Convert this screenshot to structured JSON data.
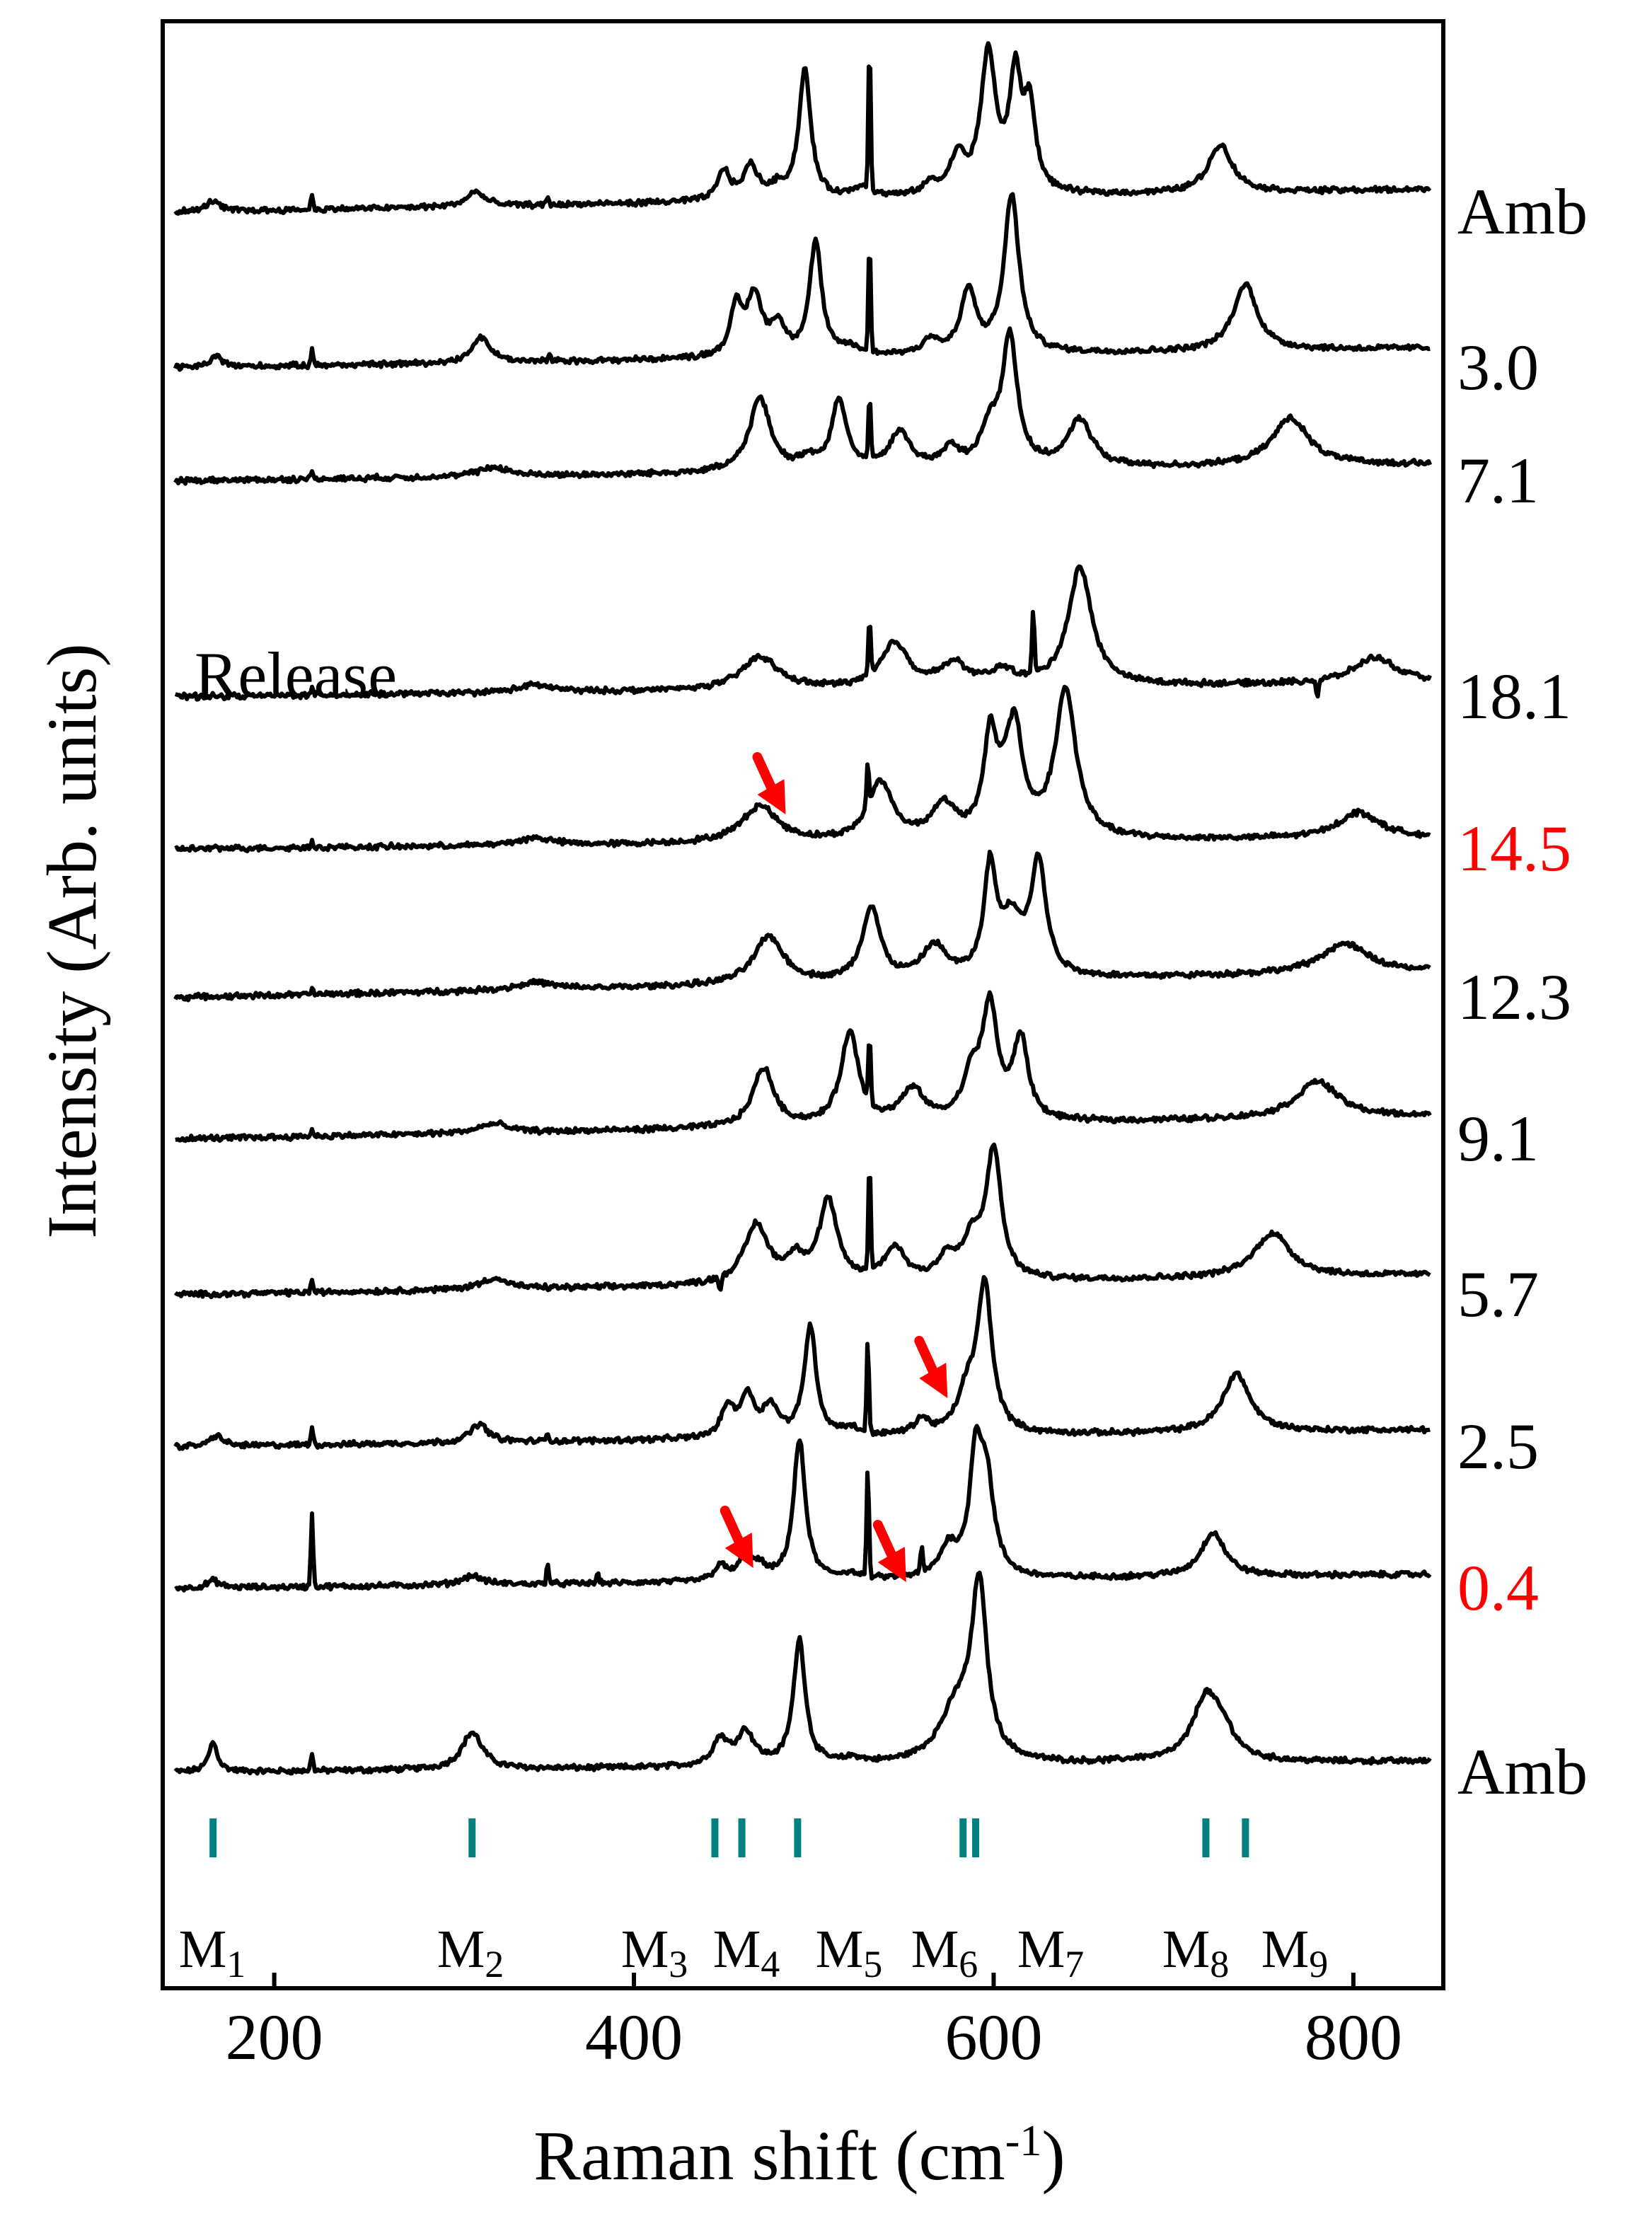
{
  "chart_data": {
    "type": "line",
    "title": "",
    "xlabel": "Raman shift (cm",
    "xlabel_sup": "-1",
    "xlabel_tail": ")",
    "ylabel": "Intensity (Arb. units)",
    "xlim": [
      138,
      850
    ],
    "xticks": [
      200,
      400,
      600,
      800
    ],
    "tick_labels": [
      "200",
      "400",
      "600",
      "800"
    ],
    "section_label": "Release",
    "colors": {
      "line": "#000000",
      "highlight": "#ff0000",
      "marker": "#008080",
      "arrow": "#ff0000"
    },
    "series": [
      {
        "name": "Amb",
        "order": 0,
        "color": "#000000",
        "spikes": [
          [
            221,
            0.5
          ]
        ],
        "peaks": [
          [
            166,
            0.8,
            3
          ],
          [
            310,
            1.0,
            7
          ],
          [
            448,
            0.7,
            5
          ],
          [
            462,
            0.9,
            6
          ],
          [
            492,
            3.4,
            4
          ],
          [
            522,
            0.15,
            6
          ],
          [
            580,
            1.5,
            12
          ],
          [
            592,
            4.5,
            5
          ],
          [
            680,
            0.05,
            10
          ],
          [
            718,
            1.7,
            9
          ],
          [
            728,
            0.6,
            8
          ]
        ]
      },
      {
        "name": "0.4",
        "order": 1,
        "color": "#ff0000",
        "spikes": [
          [
            221,
            2.0
          ],
          [
            352,
            0.6
          ],
          [
            380,
            0.3
          ],
          [
            530,
            3.0
          ],
          [
            560,
            0.7
          ]
        ],
        "peaks": [
          [
            166,
            0.2,
            4
          ],
          [
            310,
            0.25,
            7
          ],
          [
            448,
            0.4,
            4
          ],
          [
            462,
            0.6,
            5
          ],
          [
            470,
            0.3,
            4
          ],
          [
            492,
            3.8,
            4
          ],
          [
            520,
            0.15,
            6
          ],
          [
            575,
            0.8,
            6
          ],
          [
            590,
            3.0,
            4
          ],
          [
            596,
            2.5,
            5
          ],
          [
            722,
            1.2,
            8
          ]
        ]
      },
      {
        "name": "2.5",
        "order": 2,
        "color": "#000000",
        "spikes": [
          [
            221,
            0.5
          ],
          [
            352,
            0.25
          ],
          [
            530,
            2.5
          ]
        ],
        "peaks": [
          [
            168,
            0.3,
            4
          ],
          [
            314,
            0.5,
            6
          ],
          [
            452,
            0.8,
            4
          ],
          [
            463,
            1.1,
            5
          ],
          [
            476,
            0.8,
            5
          ],
          [
            498,
            3.0,
            4
          ],
          [
            520,
            0.2,
            6
          ],
          [
            560,
            0.4,
            5
          ],
          [
            585,
            1.0,
            6
          ],
          [
            595,
            4.0,
            5
          ],
          [
            735,
            1.6,
            9
          ]
        ]
      },
      {
        "name": "5.7",
        "order": 3,
        "color": "#000000",
        "spikes": [
          [
            221,
            0.35
          ],
          [
            448,
            -0.4
          ],
          [
            531,
            3.0
          ]
        ],
        "peaks": [
          [
            322,
            0.3,
            9
          ],
          [
            468,
            1.6,
            8
          ],
          [
            490,
            0.6,
            6
          ],
          [
            508,
            2.2,
            6
          ],
          [
            545,
            0.9,
            7
          ],
          [
            574,
            0.6,
            6
          ],
          [
            588,
            1.0,
            6
          ],
          [
            600,
            3.5,
            5
          ],
          [
            755,
            1.2,
            12
          ]
        ]
      },
      {
        "name": "9.1",
        "order": 4,
        "color": "#000000",
        "spikes": [
          [
            221,
            0.2
          ],
          [
            531,
            1.8
          ]
        ],
        "peaks": [
          [
            322,
            0.25,
            10
          ],
          [
            472,
            1.6,
            7
          ],
          [
            520,
            2.5,
            6
          ],
          [
            555,
            0.9,
            8
          ],
          [
            588,
            1.2,
            6
          ],
          [
            598,
            3.0,
            5
          ],
          [
            615,
            2.2,
            5
          ],
          [
            780,
            1.0,
            14
          ]
        ]
      },
      {
        "name": "12.3",
        "order": 5,
        "color": "#000000",
        "spikes": [
          [
            221,
            0.15
          ]
        ],
        "peaks": [
          [
            345,
            0.2,
            12
          ],
          [
            475,
            1.3,
            10
          ],
          [
            532,
            2.0,
            6
          ],
          [
            567,
            0.9,
            8
          ],
          [
            598,
            2.8,
            4
          ],
          [
            610,
            1.5,
            8
          ],
          [
            625,
            3.0,
            5
          ],
          [
            795,
            0.8,
            16
          ]
        ]
      },
      {
        "name": "14.5",
        "order": 6,
        "color": "#ff0000",
        "spikes": [
          [
            221,
            0.2
          ],
          [
            530,
            1.2
          ]
        ],
        "peaks": [
          [
            345,
            0.2,
            12
          ],
          [
            470,
            1.0,
            12
          ],
          [
            537,
            1.6,
            8
          ],
          [
            572,
            0.9,
            8
          ],
          [
            598,
            2.4,
            4
          ],
          [
            607,
            1.2,
            8
          ],
          [
            612,
            2.2,
            5
          ],
          [
            640,
            4.0,
            7
          ],
          [
            803,
            0.7,
            14
          ]
        ]
      },
      {
        "name": "18.1",
        "order": 7,
        "color": "#000000",
        "spikes": [
          [
            221,
            0.2
          ],
          [
            531,
            1.5
          ],
          [
            622,
            1.8
          ],
          [
            780,
            -0.5
          ]
        ],
        "peaks": [
          [
            345,
            0.2,
            12
          ],
          [
            470,
            0.9,
            12
          ],
          [
            545,
            1.2,
            9
          ],
          [
            578,
            0.6,
            9
          ],
          [
            605,
            0.4,
            8
          ],
          [
            648,
            3.2,
            8
          ],
          [
            812,
            0.7,
            14
          ]
        ]
      },
      {
        "name": "7.1",
        "order": 8,
        "color": "#000000",
        "spikes": [
          [
            221,
            0.2
          ],
          [
            531,
            1.8
          ]
        ],
        "peaks": [
          [
            322,
            0.25,
            10
          ],
          [
            470,
            2.0,
            7
          ],
          [
            497,
            0.3,
            5
          ],
          [
            514,
            1.9,
            5
          ],
          [
            548,
            1.0,
            7
          ],
          [
            576,
            0.5,
            6
          ],
          [
            598,
            1.0,
            6
          ],
          [
            609,
            3.5,
            5
          ],
          [
            648,
            1.3,
            8
          ],
          [
            765,
            1.3,
            12
          ]
        ]
      },
      {
        "name": "3.0",
        "order": 9,
        "color": "#000000",
        "spikes": [
          [
            221,
            0.5
          ],
          [
            353,
            0.2
          ],
          [
            531,
            3.0
          ]
        ],
        "peaks": [
          [
            168,
            0.3,
            4
          ],
          [
            315,
            0.7,
            6
          ],
          [
            457,
            1.3,
            4
          ],
          [
            467,
            1.6,
            5
          ],
          [
            480,
            0.8,
            5
          ],
          [
            501,
            3.1,
            4
          ],
          [
            520,
            0.2,
            6
          ],
          [
            565,
            0.4,
            5
          ],
          [
            586,
            1.7,
            5
          ],
          [
            610,
            4.3,
            5
          ],
          [
            740,
            1.8,
            8
          ]
        ]
      },
      {
        "name": "Amb",
        "order": 10,
        "color": "#000000",
        "spikes": [
          [
            221,
            0.4
          ],
          [
            352,
            0.2
          ],
          [
            531,
            4.0
          ]
        ],
        "peaks": [
          [
            166,
            0.3,
            4
          ],
          [
            312,
            0.4,
            6
          ],
          [
            450,
            0.8,
            4
          ],
          [
            465,
            0.9,
            5
          ],
          [
            480,
            0.3,
            5
          ],
          [
            495,
            3.5,
            4
          ],
          [
            527,
            0.3,
            6
          ],
          [
            565,
            0.3,
            5
          ],
          [
            580,
            1.0,
            5
          ],
          [
            597,
            3.8,
            5
          ],
          [
            612,
            3.0,
            4
          ],
          [
            620,
            2.2,
            4
          ],
          [
            726,
            1.3,
            8
          ]
        ]
      }
    ],
    "mode_markers": [
      {
        "x": 166,
        "label": "M",
        "sub": "1"
      },
      {
        "x": 310,
        "label": "M",
        "sub": "2"
      },
      {
        "x": 445,
        "label": "M",
        "sub": "3"
      },
      {
        "x": 460,
        "label": "M",
        "sub": "4"
      },
      {
        "x": 491,
        "label": "M",
        "sub": "5"
      },
      {
        "x": 583,
        "label": "M",
        "sub": "6"
      },
      {
        "x": 590,
        "label": "M",
        "sub": "7"
      },
      {
        "x": 718,
        "label": "M",
        "sub": "8"
      },
      {
        "x": 740,
        "label": "M",
        "sub": "9"
      }
    ],
    "arrows": [
      {
        "series_index": 1,
        "x": 464
      },
      {
        "series_index": 1,
        "x": 549
      },
      {
        "series_index": 2,
        "x": 572
      },
      {
        "series_index": 6,
        "x": 482
      }
    ]
  }
}
